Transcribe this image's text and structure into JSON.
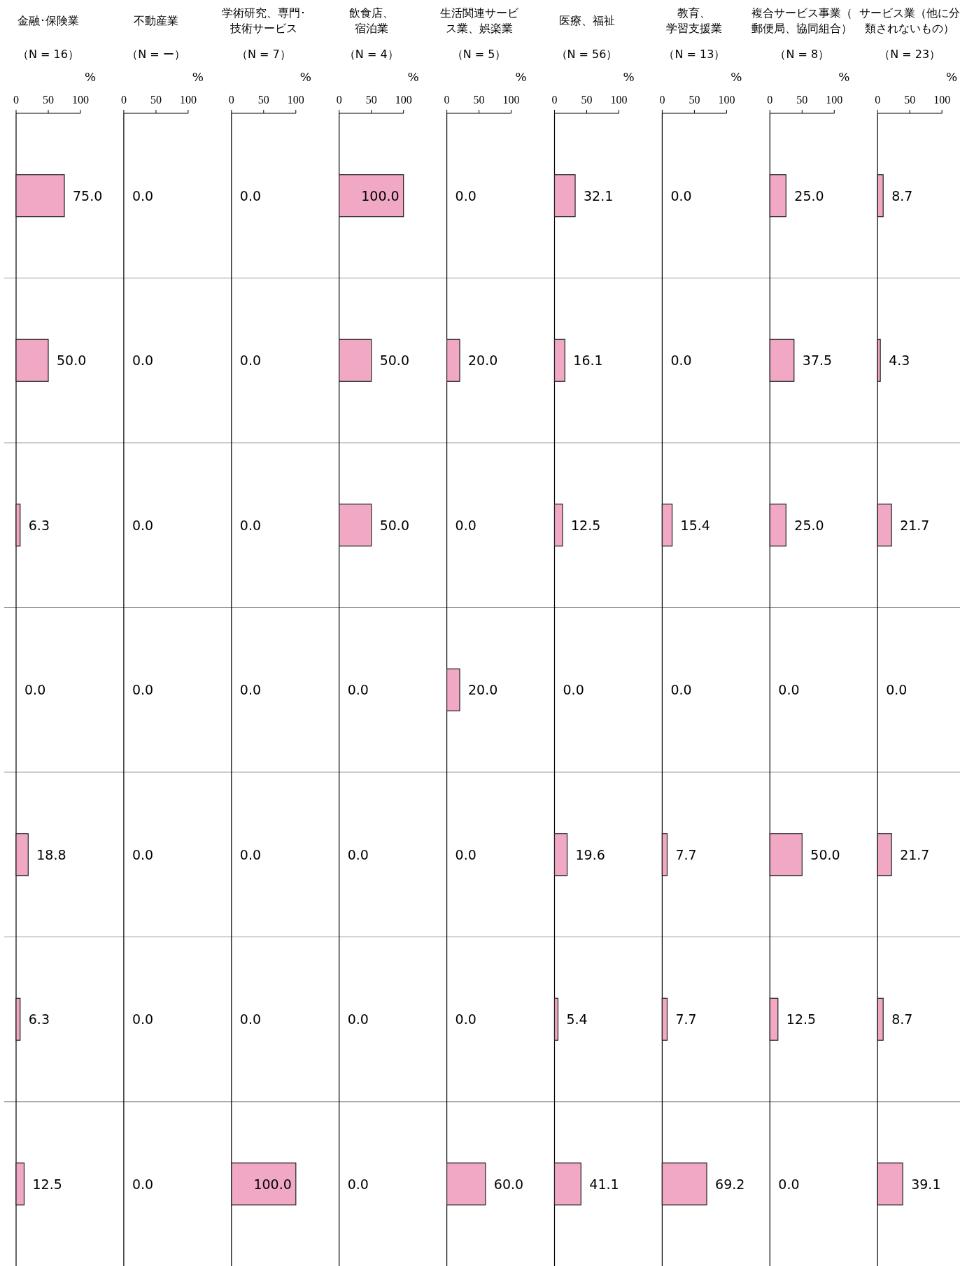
{
  "chart_data": [
    {
      "type": "bar",
      "orientation": "horizontal",
      "title": "金融･保険業",
      "subtitle": "（N = 16）",
      "xlabel": "%",
      "categories": [
        null,
        null,
        null,
        null,
        null,
        null,
        null
      ],
      "values": [
        75.0,
        50.0,
        6.3,
        0.0,
        18.8,
        6.3,
        12.5
      ],
      "value_labels": [
        "75.0",
        "50.0",
        "6.3",
        "0.0",
        "18.8",
        "6.3",
        "12.5"
      ],
      "color": "#f0a8c4",
      "xlim": [
        0,
        100
      ],
      "xticks": [
        0,
        50,
        100
      ]
    },
    {
      "type": "bar",
      "orientation": "horizontal",
      "title": "不動産業",
      "subtitle": "（N = ー）",
      "xlabel": "%",
      "categories": [
        null,
        null,
        null,
        null,
        null,
        null,
        null
      ],
      "values": [
        0.0,
        0.0,
        0.0,
        0.0,
        0.0,
        0.0,
        0.0
      ],
      "value_labels": [
        "0.0",
        "0.0",
        "0.0",
        "0.0",
        "0.0",
        "0.0",
        "0.0"
      ],
      "xlim": [
        0,
        100
      ],
      "xticks": [
        0,
        50,
        100
      ]
    },
    {
      "type": "bar",
      "orientation": "horizontal",
      "title": "学術研究、専門･技術サービス",
      "subtitle": "（N = 7）",
      "xlabel": "%",
      "categories": [
        null,
        null,
        null,
        null,
        null,
        null,
        null
      ],
      "values": [
        0.0,
        0.0,
        0.0,
        0.0,
        0.0,
        0.0,
        100.0
      ],
      "value_labels": [
        "0.0",
        "0.0",
        "0.0",
        "0.0",
        "0.0",
        "0.0",
        "100.0"
      ],
      "color": "#f0a8c4",
      "xlim": [
        0,
        100
      ],
      "xticks": [
        0,
        50,
        100
      ]
    },
    {
      "type": "bar",
      "orientation": "horizontal",
      "title": "飲食店、宿泊業",
      "subtitle": "（N = 4）",
      "xlabel": "%",
      "categories": [
        null,
        null,
        null,
        null,
        null,
        null,
        null
      ],
      "values": [
        100.0,
        50.0,
        50.0,
        0.0,
        0.0,
        0.0,
        0.0
      ],
      "value_labels": [
        "100.0",
        "50.0",
        "50.0",
        "0.0",
        "0.0",
        "0.0",
        "0.0"
      ],
      "color": "#f0a8c4",
      "xlim": [
        0,
        100
      ],
      "xticks": [
        0,
        50,
        100
      ]
    },
    {
      "type": "bar",
      "orientation": "horizontal",
      "title": "生活関連サービス業、娯楽業",
      "subtitle": "（N = 5）",
      "xlabel": "%",
      "categories": [
        null,
        null,
        null,
        null,
        null,
        null,
        null
      ],
      "values": [
        0.0,
        20.0,
        0.0,
        20.0,
        0.0,
        0.0,
        60.0
      ],
      "value_labels": [
        "0.0",
        "20.0",
        "0.0",
        "20.0",
        "0.0",
        "0.0",
        "60.0"
      ],
      "color": "#f0a8c4",
      "xlim": [
        0,
        100
      ],
      "xticks": [
        0,
        50,
        100
      ]
    },
    {
      "type": "bar",
      "orientation": "horizontal",
      "title": "医療、福祉",
      "subtitle": "（N = 56）",
      "xlabel": "%",
      "categories": [
        null,
        null,
        null,
        null,
        null,
        null,
        null
      ],
      "values": [
        32.1,
        16.1,
        12.5,
        0.0,
        19.6,
        5.4,
        41.1
      ],
      "value_labels": [
        "32.1",
        "16.1",
        "12.5",
        "0.0",
        "19.6",
        "5.4",
        "41.1"
      ],
      "color": "#f0a8c4",
      "xlim": [
        0,
        100
      ],
      "xticks": [
        0,
        50,
        100
      ]
    },
    {
      "type": "bar",
      "orientation": "horizontal",
      "title": "教育、学習支援業",
      "subtitle": "（N = 13）",
      "xlabel": "%",
      "categories": [
        null,
        null,
        null,
        null,
        null,
        null,
        null
      ],
      "values": [
        0.0,
        0.0,
        15.4,
        0.0,
        7.7,
        7.7,
        69.2
      ],
      "value_labels": [
        "0.0",
        "0.0",
        "15.4",
        "0.0",
        "7.7",
        "7.7",
        "69.2"
      ],
      "color": "#f0a8c4",
      "xlim": [
        0,
        100
      ],
      "xticks": [
        0,
        50,
        100
      ]
    },
    {
      "type": "bar",
      "orientation": "horizontal",
      "title": "複合サービス事業（郵便局、協同組合）",
      "subtitle": "（N = 8）",
      "xlabel": "%",
      "categories": [
        null,
        null,
        null,
        null,
        null,
        null,
        null
      ],
      "values": [
        25.0,
        37.5,
        25.0,
        0.0,
        50.0,
        12.5,
        0.0
      ],
      "value_labels": [
        "25.0",
        "37.5",
        "25.0",
        "0.0",
        "50.0",
        "12.5",
        "0.0"
      ],
      "color": "#f0a8c4",
      "xlim": [
        0,
        100
      ],
      "xticks": [
        0,
        50,
        100
      ]
    },
    {
      "type": "bar",
      "orientation": "horizontal",
      "title": "サービス業（他に分類されないもの）",
      "subtitle": "（N = 23）",
      "xlabel": "%",
      "categories": [
        null,
        null,
        null,
        null,
        null,
        null,
        null
      ],
      "values": [
        8.7,
        4.3,
        21.7,
        0.0,
        21.7,
        8.7,
        39.1
      ],
      "value_labels": [
        "8.7",
        "4.3",
        "21.7",
        "0.0",
        "21.7",
        "8.7",
        "39.1"
      ],
      "color": "#f0a8c4",
      "xlim": [
        0,
        100
      ],
      "xticks": [
        0,
        50,
        100
      ]
    }
  ]
}
